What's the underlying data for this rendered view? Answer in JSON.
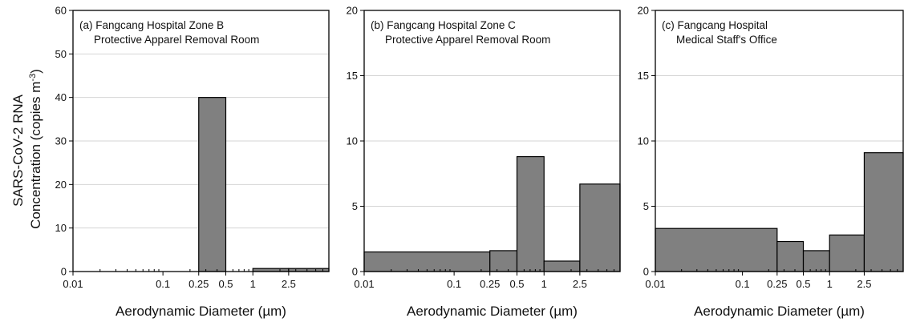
{
  "figure": {
    "ylabel_line1": "SARS-CoV-2 RNA",
    "ylabel_line2": "Concentration (copies m",
    "ylabel_sup": "-3",
    "ylabel_close": ")"
  },
  "chart_data": [
    {
      "type": "bar",
      "title_line1": "(a) Fangcang Hospital Zone B",
      "title_line2": "Protective Apparel Removal Room",
      "xlabel": "Aerodynamic Diameter (µm)",
      "xscale": "log",
      "xlim": [
        0.01,
        7
      ],
      "xticks": [
        0.01,
        0.1,
        0.25,
        0.5,
        1,
        2.5
      ],
      "xtick_labels": [
        "0.01",
        "0.1",
        "0.25",
        "0.5",
        "1",
        "2.5"
      ],
      "ylim": [
        0,
        60
      ],
      "yticks": [
        0,
        10,
        20,
        30,
        40,
        50,
        60
      ],
      "ytick_labels": [
        "0",
        "10",
        "20",
        "30",
        "40",
        "50",
        "60"
      ],
      "grid": "horizontal",
      "bar_color": "#808080",
      "bins": [
        {
          "from": 0.01,
          "to": 0.25,
          "value": 0
        },
        {
          "from": 0.25,
          "to": 0.5,
          "value": 40
        },
        {
          "from": 0.5,
          "to": 1,
          "value": 0
        },
        {
          "from": 1,
          "to": 2.5,
          "value": 0.7
        },
        {
          "from": 2.5,
          "to": 7,
          "value": 0.7
        }
      ]
    },
    {
      "type": "bar",
      "title_line1": "(b) Fangcang Hospital Zone C",
      "title_line2": "Protective Apparel Removal Room",
      "xlabel": "Aerodynamic Diameter (µm)",
      "xscale": "log",
      "xlim": [
        0.01,
        7
      ],
      "xticks": [
        0.01,
        0.1,
        0.25,
        0.5,
        1,
        2.5
      ],
      "xtick_labels": [
        "0.01",
        "0.1",
        "0.25",
        "0.5",
        "1",
        "2.5"
      ],
      "ylim": [
        0,
        20
      ],
      "yticks": [
        0,
        5,
        10,
        15,
        20
      ],
      "ytick_labels": [
        "0",
        "5",
        "10",
        "15",
        "20"
      ],
      "grid": "horizontal",
      "bar_color": "#808080",
      "bins": [
        {
          "from": 0.01,
          "to": 0.25,
          "value": 1.5
        },
        {
          "from": 0.25,
          "to": 0.5,
          "value": 1.6
        },
        {
          "from": 0.5,
          "to": 1,
          "value": 8.8
        },
        {
          "from": 1,
          "to": 2.5,
          "value": 0.8
        },
        {
          "from": 2.5,
          "to": 7,
          "value": 6.7
        }
      ]
    },
    {
      "type": "bar",
      "title_line1": "(c) Fangcang Hospital",
      "title_line2": "Medical Staff's Office",
      "xlabel": "Aerodynamic Diameter (µm)",
      "xscale": "log",
      "xlim": [
        0.01,
        7
      ],
      "xticks": [
        0.01,
        0.1,
        0.25,
        0.5,
        1,
        2.5
      ],
      "xtick_labels": [
        "0.01",
        "0.1",
        "0.25",
        "0.5",
        "1",
        "2.5"
      ],
      "ylim": [
        0,
        20
      ],
      "yticks": [
        0,
        5,
        10,
        15,
        20
      ],
      "ytick_labels": [
        "0",
        "5",
        "10",
        "15",
        "20"
      ],
      "grid": "horizontal",
      "bar_color": "#808080",
      "bins": [
        {
          "from": 0.01,
          "to": 0.25,
          "value": 3.3
        },
        {
          "from": 0.25,
          "to": 0.5,
          "value": 2.3
        },
        {
          "from": 0.5,
          "to": 1,
          "value": 1.6
        },
        {
          "from": 1,
          "to": 2.5,
          "value": 2.8
        },
        {
          "from": 2.5,
          "to": 7,
          "value": 9.1
        }
      ]
    }
  ]
}
